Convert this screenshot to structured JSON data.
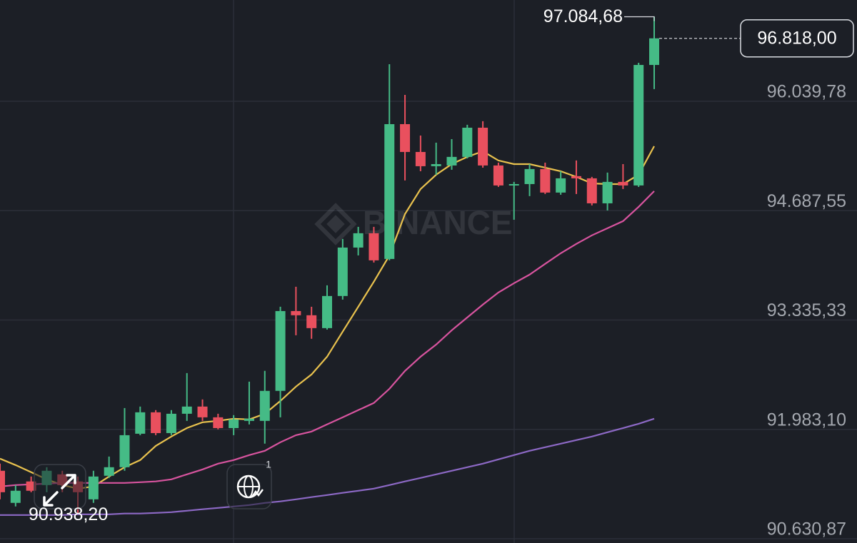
{
  "chart_data": {
    "type": "candlestick",
    "watermark": "BINANCE",
    "badge": "1",
    "up_color": "#45bb86",
    "down_color": "#e9505e",
    "open": [
      91471,
      91074,
      91339,
      91294,
      91427,
      91339,
      91118,
      91409,
      91515,
      91929,
      92194,
      91937,
      92176,
      92265,
      92132,
      91999,
      92088,
      92088,
      92459,
      93446,
      93394,
      93235,
      93632,
      94231,
      94408,
      94090,
      95757,
      95413,
      95237,
      95246,
      95352,
      95713,
      95246,
      94999,
      95016,
      95202,
      94911,
      95114,
      95087,
      94778,
      95043,
      94999,
      96489
    ],
    "high": [
      91559,
      91294,
      91400,
      91515,
      91471,
      91400,
      91471,
      91647,
      92247,
      92265,
      92221,
      92221,
      92679,
      92353,
      92176,
      92159,
      92573,
      92706,
      93499,
      93746,
      93499,
      93764,
      94337,
      94487,
      94487,
      96498,
      96119,
      95616,
      95528,
      95572,
      95749,
      95793,
      95281,
      95043,
      95263,
      95281,
      95175,
      95308,
      95105,
      95158,
      95263,
      96516,
      97084.68
    ],
    "low": [
      91118,
      91030,
      91206,
      91206,
      91206,
      90938.2,
      91074,
      91383,
      91471,
      91911,
      91911,
      91911,
      92088,
      92088,
      91983,
      91911,
      92044,
      91806,
      92132,
      93147,
      93103,
      93217,
      93588,
      94134,
      94046,
      94073,
      95061,
      95175,
      95131,
      95193,
      95334,
      95219,
      94981,
      94575,
      94867,
      94893,
      94884,
      94893,
      94752,
      94690,
      94955,
      94981,
      96190
    ],
    "close": [
      91206,
      91224,
      91224,
      91471,
      91294,
      91206,
      91400,
      91515,
      91911,
      92194,
      91937,
      92176,
      92265,
      92132,
      91999,
      92106,
      92115,
      92459,
      93446,
      93394,
      93235,
      93632,
      94231,
      94408,
      94073,
      95757,
      95413,
      95237,
      95263,
      95352,
      95713,
      95246,
      94999,
      95016,
      95202,
      94911,
      95087,
      95087,
      94778,
      95043,
      94999,
      96489,
      96818
    ],
    "moving_averages": [
      {
        "color": "#e9c24e",
        "values": [
          91621,
          91541,
          91453,
          91365,
          91294,
          91250,
          91277,
          91400,
          91515,
          91603,
          91779,
          91894,
          91999,
          92071,
          92088,
          92115,
          92106,
          92176,
          92335,
          92512,
          92662,
          92882,
          93191,
          93499,
          93808,
          94134,
          94646,
          94955,
          95131,
          95263,
          95352,
          95422,
          95308,
          95263,
          95263,
          95219,
          95175,
          95105,
          95025,
          95016,
          95016,
          95131,
          95484
        ]
      },
      {
        "color": "#d8549f",
        "values": [
          91277,
          91294,
          91303,
          91312,
          91321,
          91321,
          91321,
          91321,
          91321,
          91330,
          91339,
          91365,
          91427,
          91488,
          91559,
          91603,
          91665,
          91718,
          91824,
          91911,
          91956,
          92044,
          92132,
          92221,
          92309,
          92485,
          92706,
          92882,
          93032,
          93208,
          93367,
          93526,
          93676,
          93790,
          93896,
          94029,
          94161,
          94276,
          94382,
          94470,
          94558,
          94734,
          94928
        ]
      },
      {
        "color": "#8d69c6",
        "values": [
          90924,
          90924,
          90924,
          90924,
          90924,
          90933,
          90933,
          90933,
          90942,
          90942,
          90950,
          90959,
          90977,
          90995,
          91012,
          91030,
          91047,
          91074,
          91092,
          91118,
          91145,
          91171,
          91198,
          91224,
          91250,
          91294,
          91339,
          91383,
          91427,
          91471,
          91515,
          91559,
          91612,
          91665,
          91718,
          91762,
          91806,
          91850,
          91894,
          91947,
          91999,
          92052,
          92115
        ]
      }
    ],
    "last_price": {
      "value": 96818,
      "label": "96.818,00"
    },
    "max_label": {
      "value": 97084.68,
      "label": "97.084,68"
    },
    "min_label": {
      "value": 90938.2,
      "label": "90.938,20"
    },
    "ylim": [
      90578,
      97292
    ],
    "yticks": [
      {
        "value": 96039.78,
        "label": "96.039,78"
      },
      {
        "value": 94687.55,
        "label": "94.687,55"
      },
      {
        "value": 93335.33,
        "label": "93.335,33"
      },
      {
        "value": 91983.1,
        "label": "91.983,10"
      },
      {
        "value": 90630.87,
        "label": "90.630,87"
      }
    ],
    "grid": true
  }
}
